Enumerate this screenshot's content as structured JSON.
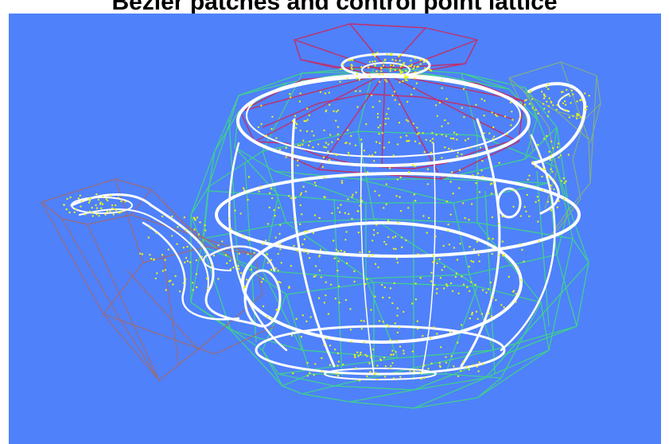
{
  "window": {
    "title": "Bézier patches and control point lattice"
  },
  "viewport": {
    "model": "Utah teapot",
    "background_color": "#4f81fa",
    "render_mode": "wireframe with control points",
    "parts": [
      {
        "name": "body",
        "lattice_color": "#3fcf8f"
      },
      {
        "name": "lid",
        "lattice_color": "#c0306a"
      },
      {
        "name": "spout",
        "lattice_color": "#9b6b7a"
      },
      {
        "name": "handle",
        "lattice_color": "#7fae8a"
      }
    ],
    "curve_color": "#ffffff",
    "control_point_color": "#e8f21a"
  }
}
